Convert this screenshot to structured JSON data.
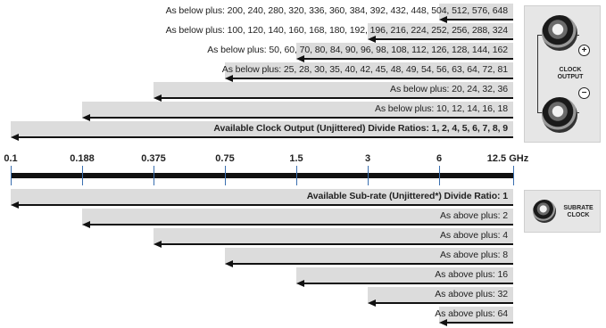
{
  "axis": {
    "unit": "GHz",
    "ticks": [
      "0.1",
      "0.188",
      "0.375",
      "0.75",
      "1.5",
      "3",
      "6",
      "12.5 GHz"
    ]
  },
  "clock_output_ratios": [
    {
      "text": "As below plus: 200, 240, 280, 320, 336, 360, 384, 392, 432, 448, 504, 512, 576, 648",
      "start_tick": 6,
      "bold": false
    },
    {
      "text": "As below plus: 100, 120, 140, 160, 168, 180, 192, 196, 216, 224, 252, 256, 288, 324",
      "start_tick": 5,
      "bold": false
    },
    {
      "text": "As below plus: 50, 60, 70, 80, 84, 90, 96, 98, 108, 112, 126, 128, 144, 162",
      "start_tick": 4,
      "bold": false
    },
    {
      "text": "As below plus: 25, 28, 30, 35, 40, 42, 45, 48, 49, 54, 56, 63, 64, 72, 81",
      "start_tick": 3,
      "bold": false
    },
    {
      "text": "As below plus: 20, 24, 32, 36",
      "start_tick": 2,
      "bold": false
    },
    {
      "text": "As below plus: 10, 12, 14, 16, 18",
      "start_tick": 1,
      "bold": false
    },
    {
      "text": "Available Clock Output (Unjittered) Divide Ratios: 1, 2, 4, 5, 6, 7, 8, 9",
      "start_tick": 0,
      "bold": true
    }
  ],
  "subrate_ratios": [
    {
      "text": "Available Sub-rate (Unjittered*) Divide Ratio: 1",
      "start_tick": 0,
      "bold": true
    },
    {
      "text": "As above plus: 2",
      "start_tick": 1,
      "bold": false
    },
    {
      "text": "As above plus: 4",
      "start_tick": 2,
      "bold": false
    },
    {
      "text": "As above plus: 8",
      "start_tick": 3,
      "bold": false
    },
    {
      "text": "As above plus: 16",
      "start_tick": 4,
      "bold": false
    },
    {
      "text": "As above plus: 32",
      "start_tick": 5,
      "bold": false
    },
    {
      "text": "As above plus: 64",
      "start_tick": 6,
      "bold": false
    }
  ],
  "clock_panel": {
    "label_line1": "CLOCK",
    "label_line2": "OUTPUT",
    "plus": "+",
    "minus": "−"
  },
  "subrate_panel": {
    "label_line1": "SUBRATE",
    "label_line2": "CLOCK"
  }
}
